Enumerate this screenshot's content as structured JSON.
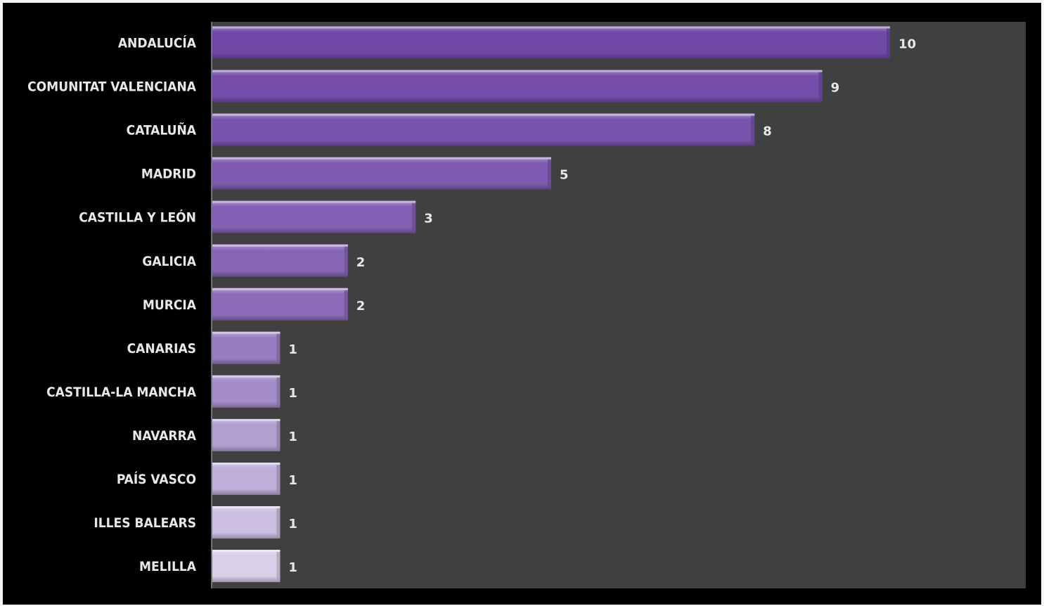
{
  "chart_data": {
    "type": "bar",
    "orientation": "horizontal",
    "categories": [
      "ANDALUCÍA",
      "COMUNITAT VALENCIANA",
      "CATALUÑA",
      "MADRID",
      "CASTILLA Y LEÓN",
      "GALICIA",
      "MURCIA",
      "CANARIAS",
      "CASTILLA-LA MANCHA",
      "NAVARRA",
      "PAÍS VASCO",
      "ILLES BALEARS",
      "MELILLA"
    ],
    "values": [
      10,
      9,
      8,
      5,
      3,
      2,
      2,
      1,
      1,
      1,
      1,
      1,
      1
    ],
    "title": "",
    "xlabel": "",
    "ylabel": "",
    "xlim": [
      0,
      12
    ],
    "grid": false,
    "legend": "none",
    "data_labels": true,
    "colors": {
      "background": "#000000",
      "plot_area": "#404040",
      "axis_line": "#8a8a8a",
      "text": "#e8e8e8",
      "bar_dark": "#7048a8",
      "bar_light": "#e4def0"
    }
  }
}
